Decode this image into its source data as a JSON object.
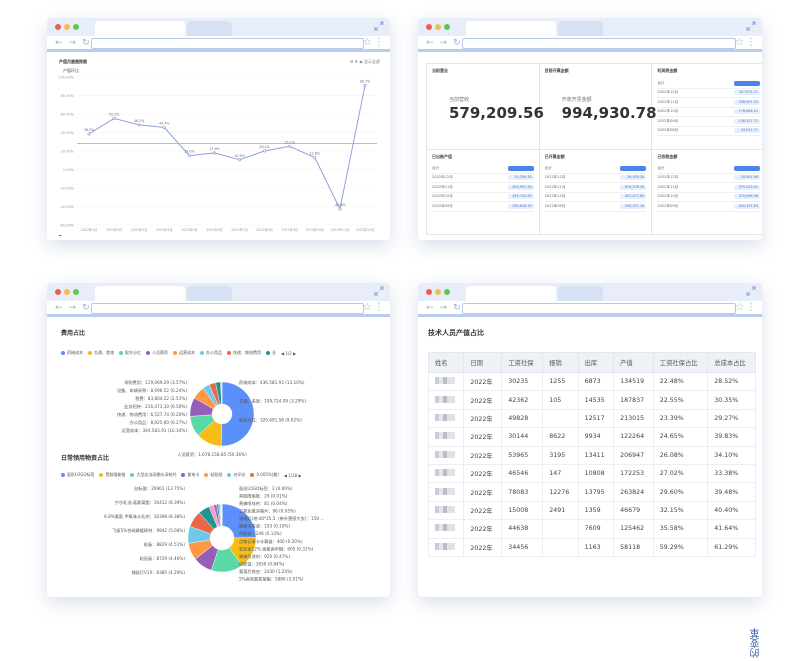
{
  "colors": {
    "accent": "#4a86e8",
    "frame": "#b9cdee",
    "line": "#8ea3dc",
    "refline": "#e88e8e"
  },
  "window1": {
    "chart_title": "产值月度趋势图",
    "legend": "产值环比",
    "controls": "☰ ⬇ ◉ 显示全部",
    "legend_bottom": "━"
  },
  "window2": {
    "kpi1": {
      "title": "当前营业",
      "label": "当前营收",
      "value": "579,209.56"
    },
    "kpi2": {
      "title": "目前开票金额",
      "label": "开收开票金额",
      "value": "994,930.78"
    },
    "panel1": {
      "title": "利润表金额",
      "rows": [
        {
          "label": "合计",
          "value": ""
        },
        {
          "label": "2022年12月",
          "value": "327,075.71"
        },
        {
          "label": "2022年11月",
          "value": "338,991.53"
        },
        {
          "label": "2022年10月",
          "value": "176,826.12"
        },
        {
          "label": "2022年09月",
          "value": "136,317.71"
        },
        {
          "label": "2022年08月",
          "value": "43,012.71"
        }
      ]
    },
    "panel2": {
      "title": "已出账产值",
      "rows": [
        {
          "label": "合计",
          "value": ""
        },
        {
          "label": "2022年12月",
          "value": "10,359.30"
        },
        {
          "label": "2022年11月",
          "value": "300,991.34"
        },
        {
          "label": "2022年10月",
          "value": "349,732.90"
        },
        {
          "label": "2022年09月",
          "value": "230,816.35"
        }
      ]
    },
    "panel3": {
      "title": "已开票金额",
      "rows": [
        {
          "label": "合计",
          "value": ""
        },
        {
          "label": "2022年12月",
          "value": "26,930.30"
        },
        {
          "label": "2022年11月",
          "value": "874,276.30"
        },
        {
          "label": "2022年10月",
          "value": "407,477.80"
        },
        {
          "label": "2022年09月",
          "value": "290,071.10"
        }
      ]
    },
    "panel4": {
      "title": "已收款金额",
      "rows": [
        {
          "label": "合计",
          "value": ""
        },
        {
          "label": "2022年12月",
          "value": "20,941.96"
        },
        {
          "label": "2022年11月",
          "value": "370,513.91"
        },
        {
          "label": "2022年10月",
          "value": "370,096.36"
        },
        {
          "label": "2022年09月",
          "value": "420,337.83"
        }
      ]
    }
  },
  "window3": {
    "section1_title": "费用占比",
    "legend1": [
      "药械成本",
      "交通、差旅",
      "股东分红",
      "人员薪资",
      "运营成本",
      "办公用品",
      "快递、物流费用",
      "业"
    ],
    "legend1_page": "1/2",
    "section2_title": "日常领用物资占比",
    "legend2": [
      "面形LOGO标签",
      "黑胶隆偷推",
      "大型店油深棚水深柏托",
      "紫电卡",
      "粘贴纸",
      "名印仪",
      "0.005%(兼)"
    ],
    "legend2_page": "1/18",
    "pie1_labels_left": [
      "采购费用：119,069.29 (3.57%)",
      "设备、车辆采购：8,096.52 (0.24%)",
      "税费：83,804.22 (2.51%)",
      "业务招待：216,473.10 (6.50%)",
      "快递、物流费用：6,527.74 (0.20%)",
      "办公用品：8,925.60 (0.27%)",
      "运营成本：344,583.91 (10.34%)"
    ],
    "pie1_labels_right": [
      "药械成本：436,581.93 (13.10%)",
      "交通、差旅：109,724.09 (3.29%)",
      "股东分红：320,491.58 (9.62%)"
    ],
    "pie1_label_bottom": "人员薪资：1,678,158.85 (50.36%)",
    "pie2_labels_left": [
      "贴标胶：26901 (13.75%)",
      "宁尔乳油.菇氯菊酯：16412 (8.39%)",
      "6.8%氯氰.甲氧味水乳剂：16398 (8.38%)",
      "飞拔5%合硫磷缓释剂：9942 (5.08%)",
      "粘板：8829 (4.51%)",
      "粘鼠板：8729 (4.46%)",
      "捕鼠灯V10：8385 (4.29%)"
    ],
    "pie2_labels_right": [
      "面形LOGO标签：2 (0.00%)",
      "黑胶隆偷推：29 (0.01%)",
      "黄蜂喷啡剂：81 (0.04%)",
      "二氧化氯消毒片：96 (0.05%)",
      "捕蝇灯(地·40*25.5（带外罩感大张）：150 ...",
      "撒氯消毒液：193 (0.10%)",
      "特能粉：246 (0.13%)",
      "点暗记录卡计算器：400 (0.20%)",
      "氧亚彼12% 高氯高甲醚：605 (0.31%)",
      "果蝇引诱剂：920 (0.47%)",
      "特能饵：1650 (0.84%)",
      "氯菊芯底虫：2430 (1.24%)",
      "5%高效氯氰菊酯：5886 (3.01%)"
    ],
    "chart_data": [
      {
        "type": "pie",
        "title": "费用占比",
        "categories": [
          "人员薪资",
          "药械成本",
          "运营成本",
          "股东分红",
          "业务招待",
          "采购费用",
          "交通、差旅",
          "税费",
          "办公用品",
          "设备、车辆采购",
          "快递、物流费用"
        ],
        "values": [
          1678158.85,
          436581.93,
          344583.91,
          320491.58,
          216473.1,
          119069.29,
          109724.09,
          83804.22,
          8925.6,
          8096.52,
          6527.74
        ]
      },
      {
        "type": "pie",
        "title": "日常领用物资占比",
        "categories": [
          "贴标胶",
          "宁尔乳油.菇氯菊酯",
          "6.8%氯氰.甲氧味水乳剂",
          "飞拔5%合硫磷缓释剂",
          "粘板",
          "粘鼠板",
          "捕鼠灯V10",
          "5%高效氯氰菊酯",
          "氯菊芯底虫",
          "特能饵",
          "果蝇引诱剂",
          "氧亚彼12% 高氯高甲醚",
          "点暗记录卡计算器",
          "特能粉",
          "撒氯消毒液",
          "捕蝇灯",
          "二氧化氯消毒片",
          "黄蜂喷啡剂",
          "黑胶隆偷推",
          "面形LOGO标签"
        ],
        "values": [
          26901,
          16412,
          16398,
          9942,
          8829,
          8729,
          8385,
          5886,
          2430,
          1650,
          920,
          605,
          400,
          246,
          193,
          150,
          96,
          81,
          29,
          2
        ]
      }
    ]
  },
  "window4": {
    "title": "技术人员产值占比",
    "columns": [
      "姓名",
      "日期",
      "工资社保",
      "报销",
      "出库",
      "产值",
      "工资社保占比",
      "总成本占比"
    ],
    "rows": [
      [
        "",
        "2022年",
        "30235",
        "1255",
        "6873",
        "134519",
        "22.48%",
        "28.52%"
      ],
      [
        "",
        "2022年",
        "42362",
        "105",
        "14535",
        "187837",
        "22.55%",
        "30.35%"
      ],
      [
        "",
        "2022年",
        "49828",
        "",
        "12517",
        "213015",
        "23.39%",
        "29.27%"
      ],
      [
        "",
        "2022年",
        "30144",
        "8622",
        "9934",
        "122264",
        "24.65%",
        "39.83%"
      ],
      [
        "",
        "2022年",
        "53965",
        "3195",
        "13411",
        "206947",
        "26.08%",
        "34.10%"
      ],
      [
        "",
        "2022年",
        "46546",
        "147",
        "10808",
        "172253",
        "27.02%",
        "33.38%"
      ],
      [
        "",
        "2022年",
        "78083",
        "12276",
        "13795",
        "263824",
        "29.60%",
        "39.48%"
      ],
      [
        "",
        "2022年",
        "15008",
        "2491",
        "1359",
        "46679",
        "32.15%",
        "40.40%"
      ],
      [
        "",
        "2022年",
        "44638",
        "",
        "7609",
        "125462",
        "35.58%",
        "41.64%"
      ],
      [
        "",
        "2022年",
        "34456",
        "",
        "1163",
        "58118",
        "59.29%",
        "61.29%"
      ]
    ]
  },
  "chart_data": {
    "type": "line",
    "title": "产值月度趋势图",
    "legend": [
      "产值环比"
    ],
    "categories": [
      "2022年1月",
      "2022年2月",
      "2022年3月",
      "2022年4月",
      "2022年5月",
      "2022年6月",
      "2022年7月",
      "2022年8月",
      "2022年9月",
      "2022年10月",
      "2022年11月",
      "2022年12月"
    ],
    "values": [
      38.5,
      55.2,
      48.2,
      45.4,
      15.0,
      17.9,
      10.5,
      20.1,
      25.1,
      12.8,
      -42.6,
      90.7
    ],
    "value_labels": [
      "38.5%",
      "55.2%",
      "48.2%",
      "45.4%",
      "15.0%",
      "17.9%",
      "10.5%",
      "20.1%",
      "25.1%",
      "12.8%",
      "-42.6%",
      "90.7%"
    ],
    "ylim": [
      -60,
      100
    ],
    "yticks": [
      "-60.00%",
      "-40.00%",
      "-20.00%",
      "0.00%",
      "20.00%",
      "40.00%",
      "60.00%",
      "80.00%",
      "100.00%"
    ],
    "reference_line": 28
  },
  "side_text": "的变革"
}
